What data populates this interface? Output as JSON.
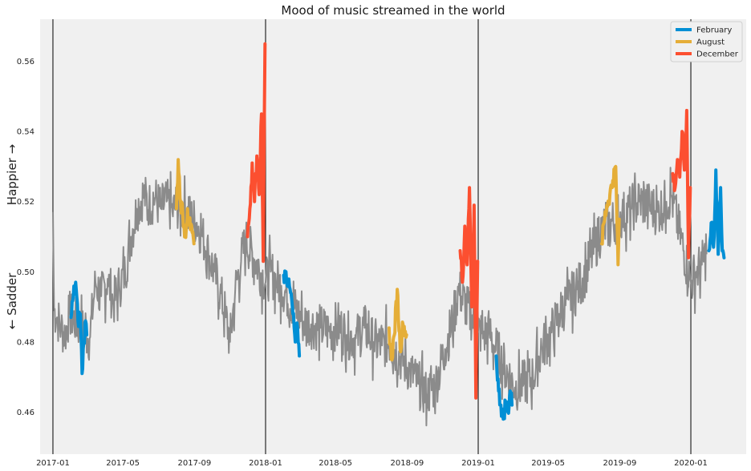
{
  "chart_data": {
    "type": "line",
    "title": "Mood of music streamed in the world",
    "ylabel_top": "Happier →",
    "ylabel_bottom": "← Sadder",
    "xlabel": "",
    "xlim": [
      "2016-12-10",
      "2020-04-05"
    ],
    "ylim": [
      0.448,
      0.572
    ],
    "x_ticks": [
      "2017-01",
      "2017-05",
      "2017-09",
      "2018-01",
      "2018-05",
      "2018-09",
      "2019-01",
      "2019-05",
      "2019-09",
      "2020-01"
    ],
    "y_ticks": [
      0.46,
      0.48,
      0.5,
      0.52,
      0.54,
      0.56
    ],
    "grid": false,
    "year_boundaries": [
      "2017-01-01",
      "2018-01-01",
      "2019-01-01",
      "2020-01-01"
    ],
    "legend": {
      "position": "top-right",
      "entries": [
        "February",
        "August",
        "December"
      ]
    },
    "colors": {
      "background": "#f0f0f0",
      "base": "#8b8b8b",
      "February": "#008fd5",
      "August": "#e5ae38",
      "December": "#fc4f30",
      "boundary": "#000000"
    },
    "series": [
      {
        "name": "",
        "color": "#8b8b8b",
        "points": [
          [
            "2017-01-01",
            0.517
          ],
          [
            "2017-01-03",
            0.489
          ],
          [
            "2017-01-08",
            0.487
          ],
          [
            "2017-01-15",
            0.484
          ],
          [
            "2017-01-22",
            0.482
          ],
          [
            "2017-01-29",
            0.488
          ],
          [
            "2017-03-05",
            0.481
          ],
          [
            "2017-03-15",
            0.497
          ],
          [
            "2017-03-25",
            0.493
          ],
          [
            "2017-04-05",
            0.498
          ],
          [
            "2017-04-15",
            0.491
          ],
          [
            "2017-04-25",
            0.496
          ],
          [
            "2017-05-05",
            0.5
          ],
          [
            "2017-05-15",
            0.51
          ],
          [
            "2017-05-25",
            0.518
          ],
          [
            "2017-06-05",
            0.522
          ],
          [
            "2017-06-15",
            0.519
          ],
          [
            "2017-06-25",
            0.521
          ],
          [
            "2017-07-05",
            0.518
          ],
          [
            "2017-07-15",
            0.52
          ],
          [
            "2017-07-25",
            0.517
          ],
          [
            "2017-08-01",
            0.519
          ],
          [
            "2017-09-05",
            0.514
          ],
          [
            "2017-09-15",
            0.51
          ],
          [
            "2017-09-25",
            0.505
          ],
          [
            "2017-10-05",
            0.5
          ],
          [
            "2017-10-15",
            0.494
          ],
          [
            "2017-10-25",
            0.487
          ],
          [
            "2017-11-01",
            0.48
          ],
          [
            "2017-11-10",
            0.495
          ],
          [
            "2017-11-20",
            0.503
          ],
          [
            "2017-11-28",
            0.509
          ],
          [
            "2018-01-01",
            0.497
          ],
          [
            "2018-01-10",
            0.5
          ],
          [
            "2018-01-20",
            0.497
          ],
          [
            "2018-01-28",
            0.496
          ],
          [
            "2018-03-05",
            0.486
          ],
          [
            "2018-03-20",
            0.485
          ],
          [
            "2018-04-05",
            0.484
          ],
          [
            "2018-04-20",
            0.483
          ],
          [
            "2018-05-05",
            0.485
          ],
          [
            "2018-05-20",
            0.482
          ],
          [
            "2018-06-05",
            0.481
          ],
          [
            "2018-06-20",
            0.484
          ],
          [
            "2018-07-05",
            0.48
          ],
          [
            "2018-07-20",
            0.479
          ],
          [
            "2018-08-01",
            0.48
          ],
          [
            "2018-09-05",
            0.472
          ],
          [
            "2018-09-20",
            0.468
          ],
          [
            "2018-10-05",
            0.465
          ],
          [
            "2018-10-20",
            0.468
          ],
          [
            "2018-11-05",
            0.478
          ],
          [
            "2018-11-20",
            0.487
          ],
          [
            "2018-11-28",
            0.495
          ],
          [
            "2019-01-01",
            0.483
          ],
          [
            "2019-01-10",
            0.482
          ],
          [
            "2019-01-20",
            0.483
          ],
          [
            "2019-01-28",
            0.479
          ],
          [
            "2019-03-05",
            0.467
          ],
          [
            "2019-03-20",
            0.468
          ],
          [
            "2019-04-05",
            0.47
          ],
          [
            "2019-04-20",
            0.478
          ],
          [
            "2019-05-05",
            0.482
          ],
          [
            "2019-05-20",
            0.488
          ],
          [
            "2019-06-05",
            0.492
          ],
          [
            "2019-06-20",
            0.495
          ],
          [
            "2019-07-05",
            0.5
          ],
          [
            "2019-07-20",
            0.507
          ],
          [
            "2019-08-01",
            0.512
          ],
          [
            "2019-09-05",
            0.516
          ],
          [
            "2019-09-20",
            0.518
          ],
          [
            "2019-10-05",
            0.52
          ],
          [
            "2019-10-20",
            0.519
          ],
          [
            "2019-11-05",
            0.517
          ],
          [
            "2019-11-20",
            0.52
          ],
          [
            "2019-11-28",
            0.522
          ],
          [
            "2020-01-01",
            0.497
          ],
          [
            "2020-01-10",
            0.5
          ],
          [
            "2020-01-20",
            0.502
          ],
          [
            "2020-01-28",
            0.505
          ]
        ]
      },
      {
        "name": "February",
        "color": "#008fd5",
        "segments": [
          [
            [
              "2017-02-01",
              0.487
            ],
            [
              "2017-02-05",
              0.493
            ],
            [
              "2017-02-09",
              0.497
            ],
            [
              "2017-02-13",
              0.486
            ],
            [
              "2017-02-17",
              0.488
            ],
            [
              "2017-02-20",
              0.471
            ],
            [
              "2017-02-23",
              0.48
            ],
            [
              "2017-02-26",
              0.486
            ],
            [
              "2017-02-28",
              0.482
            ]
          ],
          [
            [
              "2018-02-01",
              0.499
            ],
            [
              "2018-02-05",
              0.5
            ],
            [
              "2018-02-09",
              0.496
            ],
            [
              "2018-02-13",
              0.494
            ],
            [
              "2018-02-17",
              0.488
            ],
            [
              "2018-02-21",
              0.48
            ],
            [
              "2018-02-25",
              0.484
            ],
            [
              "2018-02-28",
              0.476
            ]
          ],
          [
            [
              "2019-02-01",
              0.476
            ],
            [
              "2019-02-05",
              0.466
            ],
            [
              "2019-02-09",
              0.462
            ],
            [
              "2019-02-13",
              0.458
            ],
            [
              "2019-02-17",
              0.463
            ],
            [
              "2019-02-21",
              0.46
            ],
            [
              "2019-02-25",
              0.466
            ],
            [
              "2019-02-28",
              0.462
            ]
          ],
          [
            [
              "2020-02-01",
              0.506
            ],
            [
              "2020-02-05",
              0.514
            ],
            [
              "2020-02-09",
              0.507
            ],
            [
              "2020-02-13",
              0.529
            ],
            [
              "2020-02-17",
              0.505
            ],
            [
              "2020-02-21",
              0.524
            ],
            [
              "2020-02-24",
              0.506
            ],
            [
              "2020-02-27",
              0.504
            ]
          ]
        ]
      },
      {
        "name": "August",
        "color": "#e5ae38",
        "segments": [
          [
            [
              "2017-08-01",
              0.518
            ],
            [
              "2017-08-04",
              0.532
            ],
            [
              "2017-08-08",
              0.52
            ],
            [
              "2017-08-12",
              0.516
            ],
            [
              "2017-08-16",
              0.51
            ],
            [
              "2017-08-20",
              0.518
            ],
            [
              "2017-08-25",
              0.512
            ],
            [
              "2017-08-31",
              0.508
            ]
          ],
          [
            [
              "2018-08-01",
              0.484
            ],
            [
              "2018-08-05",
              0.475
            ],
            [
              "2018-08-10",
              0.482
            ],
            [
              "2018-08-15",
              0.495
            ],
            [
              "2018-08-20",
              0.478
            ],
            [
              "2018-08-25",
              0.485
            ],
            [
              "2018-08-31",
              0.482
            ]
          ],
          [
            [
              "2019-08-01",
              0.508
            ],
            [
              "2019-08-05",
              0.514
            ],
            [
              "2019-08-10",
              0.519
            ],
            [
              "2019-08-15",
              0.522
            ],
            [
              "2019-08-20",
              0.526
            ],
            [
              "2019-08-25",
              0.53
            ],
            [
              "2019-08-29",
              0.502
            ],
            [
              "2019-08-31",
              0.515
            ]
          ]
        ]
      },
      {
        "name": "December",
        "color": "#fc4f30",
        "segments": [
          [
            [
              "2017-12-01",
              0.51
            ],
            [
              "2017-12-05",
              0.518
            ],
            [
              "2017-12-09",
              0.531
            ],
            [
              "2017-12-13",
              0.52
            ],
            [
              "2017-12-17",
              0.533
            ],
            [
              "2017-12-21",
              0.522
            ],
            [
              "2017-12-25",
              0.545
            ],
            [
              "2017-12-28",
              0.503
            ],
            [
              "2017-12-31",
              0.565
            ]
          ],
          [
            [
              "2018-12-01",
              0.506
            ],
            [
              "2018-12-05",
              0.497
            ],
            [
              "2018-12-09",
              0.513
            ],
            [
              "2018-12-13",
              0.502
            ],
            [
              "2018-12-17",
              0.524
            ],
            [
              "2018-12-21",
              0.49
            ],
            [
              "2018-12-25",
              0.519
            ],
            [
              "2018-12-28",
              0.464
            ],
            [
              "2018-12-31",
              0.503
            ]
          ],
          [
            [
              "2019-12-01",
              0.528
            ],
            [
              "2019-12-05",
              0.524
            ],
            [
              "2019-12-09",
              0.532
            ],
            [
              "2019-12-13",
              0.527
            ],
            [
              "2019-12-17",
              0.54
            ],
            [
              "2019-12-21",
              0.529
            ],
            [
              "2019-12-25",
              0.546
            ],
            [
              "2019-12-28",
              0.504
            ],
            [
              "2019-12-31",
              0.524
            ]
          ]
        ]
      }
    ]
  }
}
